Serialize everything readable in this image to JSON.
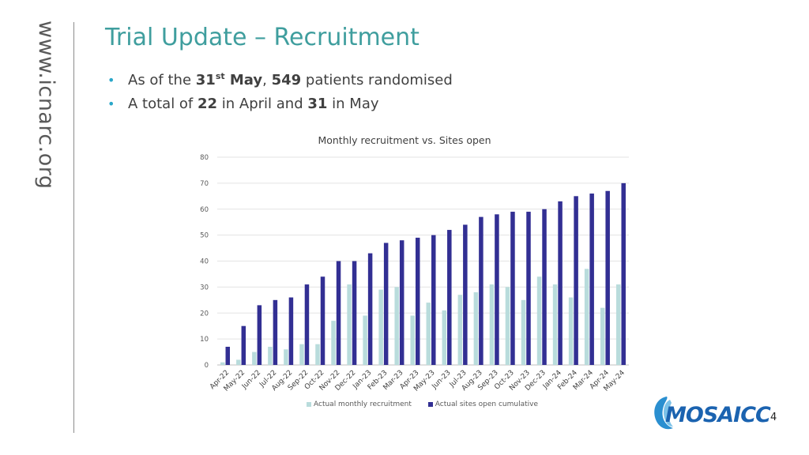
{
  "side_text": "www.icnarc.org",
  "title": "Trial Update – Recruitment",
  "bullets": {
    "b1": {
      "pre": "As of the ",
      "day": "31",
      "sup": "st",
      "month": " May",
      "sep": ", ",
      "count": "549",
      "post": " patients randomised"
    },
    "b2": {
      "pre": "A total of ",
      "n1": "22",
      "mid": " in April and ",
      "n2": "31",
      "post": " in May"
    }
  },
  "page_number": "4",
  "logo_text": "MOSAICC",
  "colors": {
    "recruitment": "#b9dcdc",
    "sites": "#322f93",
    "title": "#3f9e9e",
    "bullet": "#2aa7c9"
  },
  "chart_data": {
    "type": "bar",
    "title": "Monthly recruitment vs. Sites open",
    "categories": [
      "Apr-22",
      "May-22",
      "Jun-22",
      "Jul-22",
      "Aug-22",
      "Sep-22",
      "Oct-22",
      "Nov-22",
      "Dec-22",
      "Jan-23",
      "Feb-23",
      "Mar-23",
      "Apr-23",
      "May-23",
      "Jun-23",
      "Jul-23",
      "Aug-23",
      "Sep-23",
      "Oct-23",
      "Nov-23",
      "Dec-23",
      "Jan-24",
      "Feb-24",
      "Mar-24",
      "Apr-24",
      "May-24"
    ],
    "series": [
      {
        "name": "Actual monthly recruitment",
        "values": [
          1,
          2,
          5,
          7,
          6,
          8,
          8,
          17,
          31,
          19,
          29,
          30,
          19,
          24,
          21,
          27,
          28,
          31,
          30,
          25,
          34,
          31,
          26,
          37,
          22,
          31
        ]
      },
      {
        "name": "Actual sites open cumulative",
        "values": [
          7,
          15,
          23,
          25,
          26,
          31,
          34,
          40,
          40,
          43,
          47,
          48,
          49,
          50,
          52,
          54,
          57,
          58,
          59,
          59,
          60,
          63,
          65,
          66,
          67,
          70
        ]
      }
    ],
    "ylim": [
      0,
      80
    ],
    "yticks": [
      "0",
      "10",
      "20",
      "30",
      "40",
      "50",
      "60",
      "70",
      "80"
    ],
    "grid": true,
    "legend": "bottom"
  }
}
